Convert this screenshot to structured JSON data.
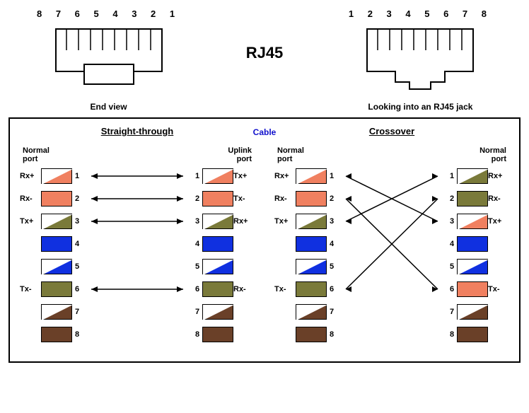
{
  "top": {
    "title": "RJ45",
    "left_pins": "8 7 6 5 4 3 2 1",
    "left_caption": "End view",
    "right_pins": "1 2 3 4 5 6 7 8",
    "right_caption": "Looking into an RJ45 jack"
  },
  "cable_label": "Cable",
  "colors": {
    "orange": "#f08060",
    "green": "#7a7a3a",
    "blue": "#1030e0",
    "brown": "#6a4028",
    "white": "#ffffff"
  },
  "straight": {
    "title": "Straight-through",
    "left_port": "Normal\nport",
    "right_port": "Uplink\nport",
    "pins": [
      {
        "n": 1,
        "sigL": "Rx+",
        "sigR": "Tx+",
        "colL": [
          "white",
          "orange"
        ],
        "colR": [
          "white",
          "orange"
        ],
        "to": 1,
        "arrow": true
      },
      {
        "n": 2,
        "sigL": "Rx-",
        "sigR": "Tx-",
        "colL": [
          "orange"
        ],
        "colR": [
          "orange"
        ],
        "to": 2,
        "arrow": true
      },
      {
        "n": 3,
        "sigL": "Tx+",
        "sigR": "Rx+",
        "colL": [
          "white",
          "green"
        ],
        "colR": [
          "white",
          "green"
        ],
        "to": 3,
        "arrow": true
      },
      {
        "n": 4,
        "sigL": "",
        "sigR": "",
        "colL": [
          "blue"
        ],
        "colR": [
          "blue"
        ],
        "to": null
      },
      {
        "n": 5,
        "sigL": "",
        "sigR": "",
        "colL": [
          "white",
          "blue"
        ],
        "colR": [
          "white",
          "blue"
        ],
        "to": null
      },
      {
        "n": 6,
        "sigL": "Tx-",
        "sigR": "Rx-",
        "colL": [
          "green"
        ],
        "colR": [
          "green"
        ],
        "to": 6,
        "arrow": true
      },
      {
        "n": 7,
        "sigL": "",
        "sigR": "",
        "colL": [
          "white",
          "brown"
        ],
        "colR": [
          "white",
          "brown"
        ],
        "to": null
      },
      {
        "n": 8,
        "sigL": "",
        "sigR": "",
        "colL": [
          "brown"
        ],
        "colR": [
          "brown"
        ],
        "to": null
      }
    ]
  },
  "crossover": {
    "title": "Crossover",
    "left_port": "Normal\nport",
    "right_port": "Normal\nport",
    "pins_left": [
      {
        "n": 1,
        "sig": "Rx+",
        "col": [
          "white",
          "orange"
        ]
      },
      {
        "n": 2,
        "sig": "Rx-",
        "col": [
          "orange"
        ]
      },
      {
        "n": 3,
        "sig": "Tx+",
        "col": [
          "white",
          "green"
        ]
      },
      {
        "n": 4,
        "sig": "",
        "col": [
          "blue"
        ]
      },
      {
        "n": 5,
        "sig": "",
        "col": [
          "white",
          "blue"
        ]
      },
      {
        "n": 6,
        "sig": "Tx-",
        "col": [
          "green"
        ]
      },
      {
        "n": 7,
        "sig": "",
        "col": [
          "white",
          "brown"
        ]
      },
      {
        "n": 8,
        "sig": "",
        "col": [
          "brown"
        ]
      }
    ],
    "pins_right": [
      {
        "n": 1,
        "sig": "Rx+",
        "col": [
          "white",
          "green"
        ]
      },
      {
        "n": 2,
        "sig": "Rx-",
        "col": [
          "green"
        ]
      },
      {
        "n": 3,
        "sig": "Tx+",
        "col": [
          "white",
          "orange"
        ]
      },
      {
        "n": 4,
        "sig": "",
        "col": [
          "blue"
        ]
      },
      {
        "n": 5,
        "sig": "",
        "col": [
          "white",
          "blue"
        ]
      },
      {
        "n": 6,
        "sig": "Tx-",
        "col": [
          "orange"
        ]
      },
      {
        "n": 7,
        "sig": "",
        "col": [
          "white",
          "brown"
        ]
      },
      {
        "n": 8,
        "sig": "",
        "col": [
          "brown"
        ]
      }
    ],
    "map": [
      [
        1,
        3
      ],
      [
        2,
        6
      ],
      [
        3,
        1
      ],
      [
        6,
        2
      ]
    ]
  }
}
